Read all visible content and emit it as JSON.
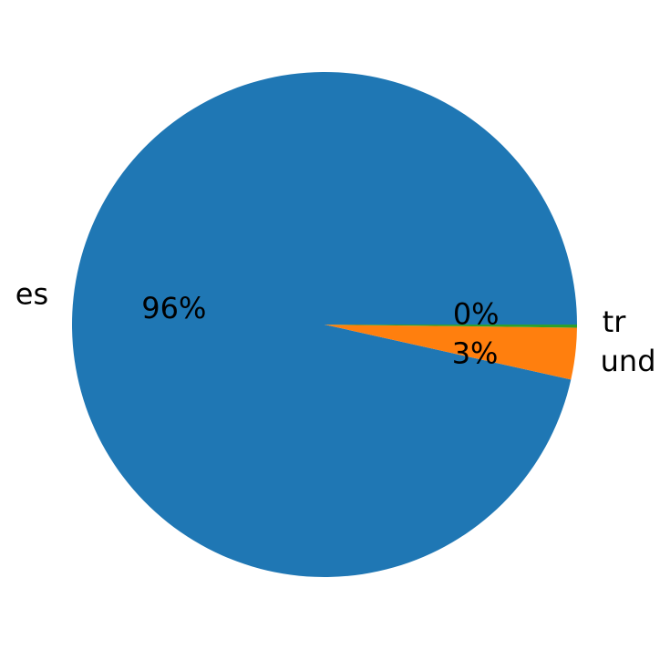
{
  "chart_data": {
    "type": "pie",
    "title": "",
    "labels": [
      "es",
      "und",
      "tr"
    ],
    "values": [
      96.5,
      3.3,
      0.2
    ],
    "pct_labels": [
      "96%",
      "3%",
      "0%"
    ],
    "colors": [
      "#1f77b4",
      "#ff7f0e",
      "#2ca02c"
    ],
    "start_angle_deg": 0,
    "direction": "counterclockwise"
  }
}
